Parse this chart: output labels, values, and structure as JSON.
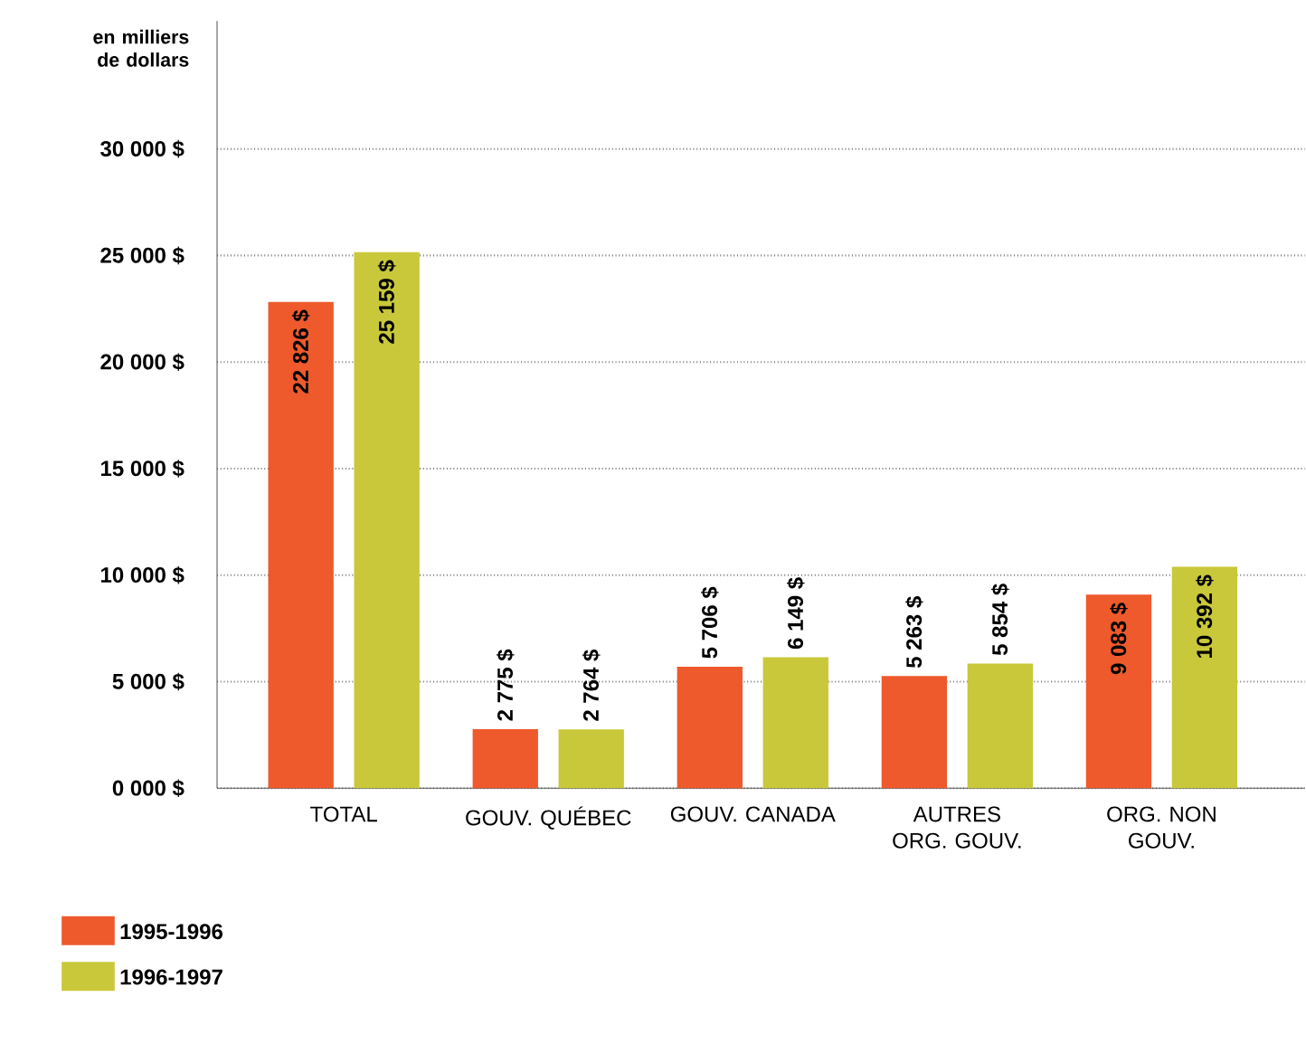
{
  "chart_data": {
    "type": "bar",
    "ylabel": "en milliers de dollars",
    "categories": [
      "TOTAL",
      "GOUV. QUÉBEC",
      "GOUV. CANADA",
      "AUTRES ORG. GOUV.",
      "ORG. NON GOUV."
    ],
    "series": [
      {
        "name": "1995-1996",
        "color": "#ee5a2c",
        "values": [
          22826,
          2775,
          5706,
          5263,
          9083
        ],
        "value_labels": [
          "22 826 $",
          "2 775 $",
          "5 706 $",
          "5 263 $",
          "9 083 $"
        ]
      },
      {
        "name": "1996-1997",
        "color": "#c9c83a",
        "values": [
          25159,
          2764,
          6149,
          5854,
          10392
        ],
        "value_labels": [
          "25 159 $",
          "2 764 $",
          "6 149 $",
          "5 854 $",
          "10 392 $"
        ]
      }
    ],
    "ylim": [
      0,
      36000
    ],
    "yticks": [
      {
        "value": 0,
        "label": "0 000 $"
      },
      {
        "value": 5000,
        "label": "5 000 $"
      },
      {
        "value": 10000,
        "label": "10 000 $"
      },
      {
        "value": 15000,
        "label": "15 000 $"
      },
      {
        "value": 20000,
        "label": "20 000 $"
      },
      {
        "value": 25000,
        "label": "25 000 $"
      },
      {
        "value": 30000,
        "label": "30 000 $"
      }
    ],
    "grid": "y",
    "legend": "bottom left"
  }
}
